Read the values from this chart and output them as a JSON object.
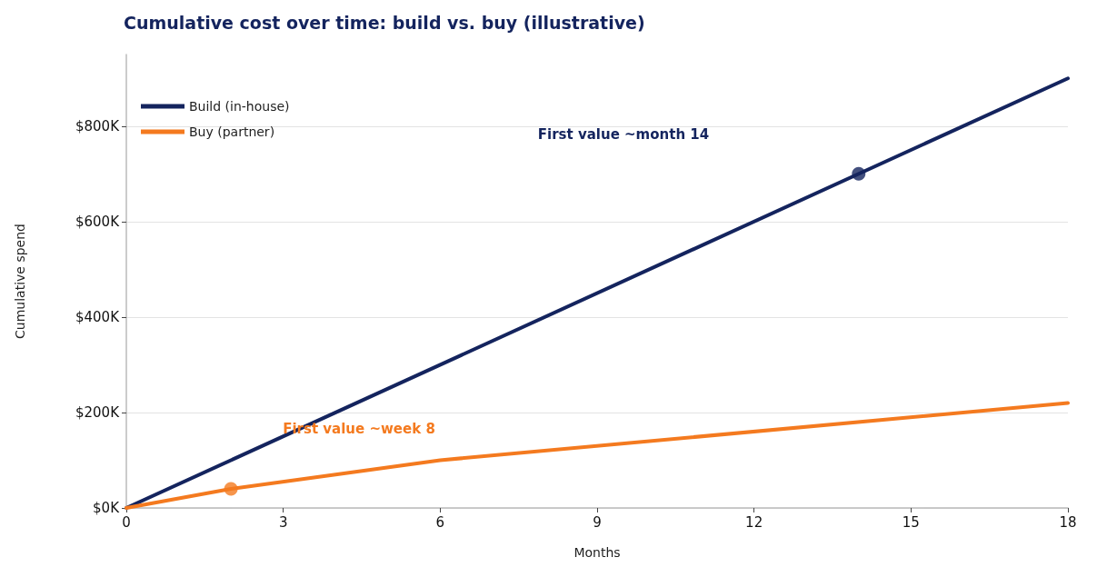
{
  "chart_data": {
    "type": "line",
    "title": "Cumulative cost over time: build vs. buy (illustrative)",
    "xlabel": "Months",
    "ylabel": "Cumulative spend",
    "xlim": [
      0,
      18
    ],
    "xticks": [
      0,
      3,
      6,
      9,
      12,
      15,
      18
    ],
    "ylim": [
      0,
      950000
    ],
    "yticks": [
      {
        "value": 0,
        "label": "$0K"
      },
      {
        "value": 200000,
        "label": "$200K"
      },
      {
        "value": 400000,
        "label": "$400K"
      },
      {
        "value": 600000,
        "label": "$600K"
      },
      {
        "value": 800000,
        "label": "$800K"
      }
    ],
    "grid": "y",
    "legend": "top left",
    "line_style": "solid",
    "series": [
      {
        "name": "Build (in-house)",
        "color": "#14245e",
        "x": [
          0,
          18
        ],
        "values": [
          0,
          900000
        ]
      },
      {
        "name": "Buy (partner)",
        "color": "#f47a1f",
        "x": [
          0,
          2,
          6,
          18
        ],
        "values": [
          0,
          40000,
          100000,
          220000
        ]
      },
      {
        "type": "scatter",
        "color": "#14245e",
        "x": [
          14
        ],
        "values": [
          700000
        ]
      },
      {
        "type": "scatter",
        "color": "#f47a1f",
        "x": [
          2
        ],
        "values": [
          40000
        ]
      }
    ],
    "annotations": [
      "First value ~month 14",
      "First value ~week 8"
    ]
  }
}
